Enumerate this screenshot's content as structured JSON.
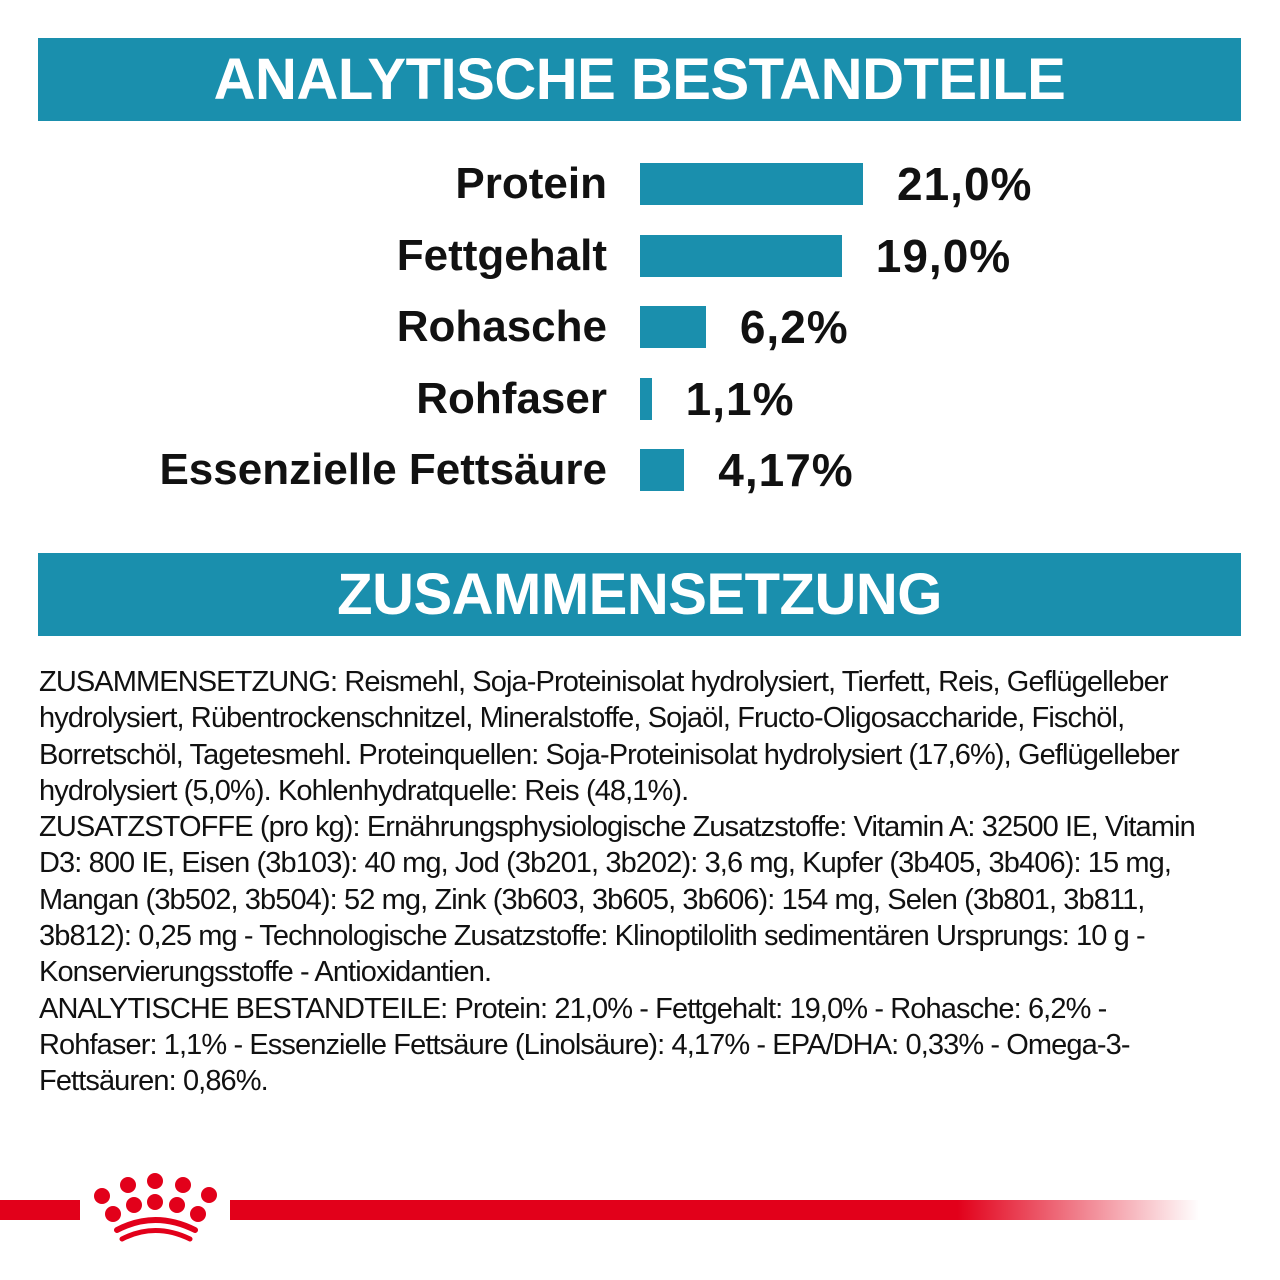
{
  "colors": {
    "accent": "#1a8fad",
    "brand_red": "#e2001a"
  },
  "header1": {
    "title": "ANALYTISCHE BESTANDTEILE"
  },
  "header2": {
    "title": "ZUSAMMENSETZUNG"
  },
  "chart_data": {
    "type": "bar",
    "orientation": "horizontal",
    "categories": [
      "Protein",
      "Fettgehalt",
      "Rohasche",
      "Rohfaser",
      "Essenzielle Fettsäure"
    ],
    "values": [
      21.0,
      19.0,
      6.2,
      1.1,
      4.17
    ],
    "data_labels": [
      "21,0%",
      "19,0%",
      "6,2%",
      "1,1%",
      "4,17%"
    ],
    "unit": "%",
    "grid": false
  },
  "composition": {
    "lines": [
      "ZUSAMMENSETZUNG: Reismehl, Soja-Proteinisolat hydrolysiert, Tierfett, Reis, Geflügelleber",
      "hydrolysiert, Rübentrockenschnitzel, Mineralstoffe, Sojaöl, Fructo-Oligosaccharide, Fischöl,",
      "Borretschöl, Tagetesmehl. Proteinquellen: Soja-Proteinisolat hydrolysiert (17,6%), Geflügelleber",
      "hydrolysiert (5,0%). Kohlenhydratquelle: Reis (48,1%).",
      "ZUSATZSTOFFE (pro kg): Ernährungsphysiologische Zusatzstoffe: Vitamin A: 32500 IE, Vitamin",
      "D3: 800 IE, Eisen (3b103): 40 mg, Jod (3b201, 3b202): 3,6 mg, Kupfer (3b405, 3b406): 15 mg,",
      "Mangan (3b502, 3b504): 52 mg, Zink (3b603, 3b605, 3b606): 154 mg, Selen (3b801, 3b811,",
      "3b812): 0,25 mg - Technologische Zusatzstoffe: Klinoptilolith sedimentären Ursprungs: 10 g -",
      "Konservierungsstoffe - Antioxidantien.",
      "ANALYTISCHE BESTANDTEILE: Protein: 21,0% - Fettgehalt: 19,0% - Rohasche: 6,2% -",
      "Rohfaser: 1,1% - Essenzielle Fettsäure (Linolsäure): 4,17% - EPA/DHA: 0,33% - Omega-3-",
      "Fettsäuren: 0,86%."
    ]
  },
  "footer": {
    "logo": "royal-canin-crown-logo"
  }
}
